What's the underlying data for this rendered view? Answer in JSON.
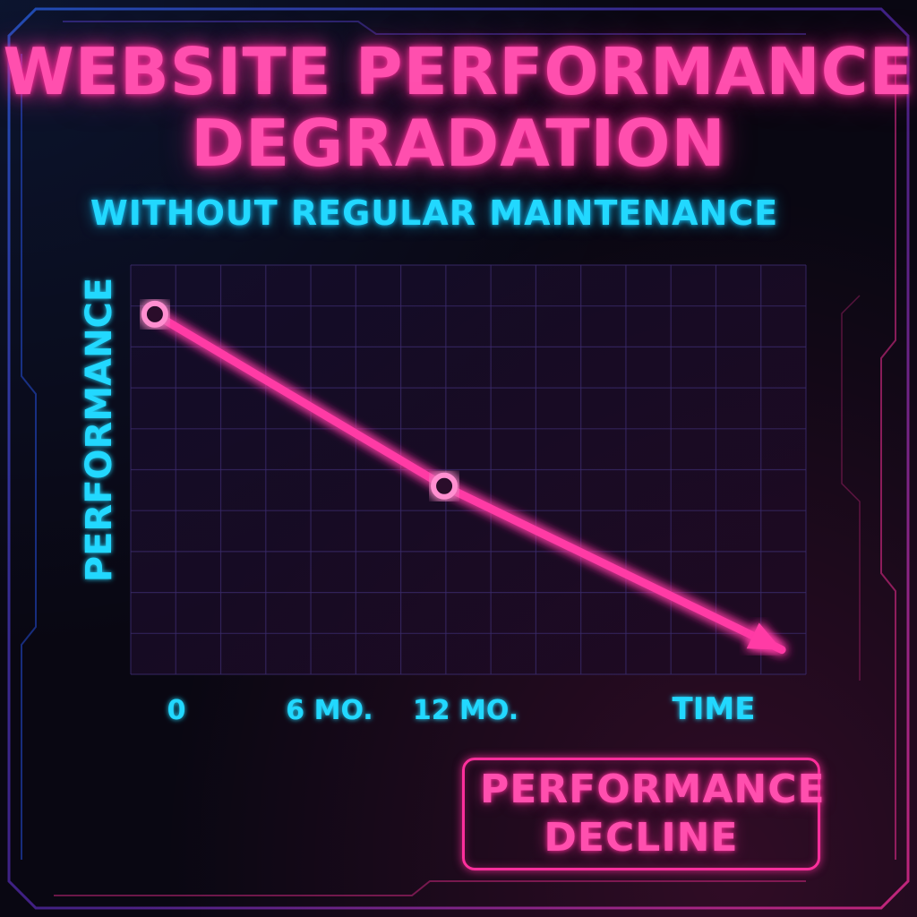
{
  "title": "WEBSITE PERFORMANCE DEGRADATION",
  "subtitle": "WITHOUT REGULAR MAINTENANCE",
  "legend_label": "PERFORMANCE DECLINE",
  "colors": {
    "background": "#090712",
    "title": "#ff4fae",
    "line": "#ff3aa5",
    "axis": "#22d8ff",
    "grid": "#3a2a6a"
  },
  "chart_data": {
    "type": "line",
    "title": "WEBSITE PERFORMANCE DEGRADATION",
    "subtitle": "WITHOUT REGULAR MAINTENANCE",
    "xlabel": "TIME",
    "ylabel": "PERFORMANCE",
    "x_tick_labels": [
      "0",
      "6 MO.",
      "12 MO."
    ],
    "x_unit": "months",
    "xlim": [
      -1,
      27
    ],
    "ylim": [
      0,
      100
    ],
    "grid": true,
    "y_ticks_shown": false,
    "series": [
      {
        "name": "PERFORMANCE DECLINE",
        "points": [
          {
            "x": 0,
            "y": 88,
            "marker": true
          },
          {
            "x": 12,
            "y": 46,
            "marker": true
          },
          {
            "x": 26,
            "y": 6,
            "marker": false,
            "arrow": true
          }
        ]
      }
    ]
  }
}
